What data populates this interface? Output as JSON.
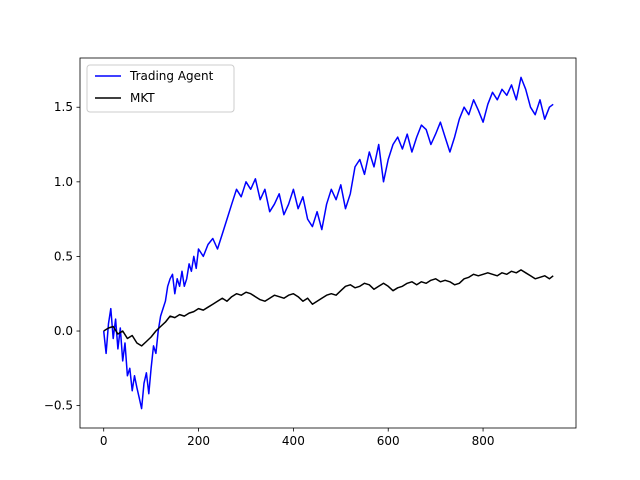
{
  "chart_data": {
    "type": "line",
    "title": "",
    "xlabel": "",
    "ylabel": "",
    "xlim": [
      -50,
      996
    ],
    "ylim": [
      -0.65,
      1.83
    ],
    "xticks": [
      0,
      200,
      400,
      600,
      800
    ],
    "xtick_labels": [
      "0",
      "200",
      "400",
      "600",
      "800"
    ],
    "yticks": [
      -0.5,
      0.0,
      0.5,
      1.0,
      1.5
    ],
    "ytick_labels": [
      "−0.5",
      "0.0",
      "0.5",
      "1.0",
      "1.5"
    ],
    "grid": false,
    "legend_position": "top-left",
    "series": [
      {
        "name": "Trading Agent",
        "color": "#0000ff",
        "x": [
          0,
          5,
          10,
          15,
          20,
          25,
          30,
          35,
          40,
          45,
          50,
          55,
          60,
          65,
          70,
          75,
          80,
          85,
          90,
          95,
          100,
          105,
          110,
          115,
          120,
          125,
          130,
          135,
          140,
          145,
          150,
          155,
          160,
          165,
          170,
          175,
          180,
          185,
          190,
          195,
          200,
          210,
          220,
          230,
          240,
          250,
          260,
          270,
          280,
          290,
          300,
          310,
          320,
          330,
          340,
          350,
          360,
          370,
          380,
          390,
          400,
          410,
          420,
          430,
          440,
          450,
          460,
          470,
          480,
          490,
          500,
          510,
          520,
          530,
          540,
          550,
          560,
          570,
          580,
          590,
          600,
          610,
          620,
          630,
          640,
          650,
          660,
          670,
          680,
          690,
          700,
          710,
          720,
          730,
          740,
          750,
          760,
          770,
          780,
          790,
          800,
          810,
          820,
          830,
          840,
          850,
          860,
          870,
          880,
          890,
          900,
          910,
          920,
          930,
          940,
          948
        ],
        "values": [
          0.0,
          -0.15,
          0.05,
          0.15,
          -0.05,
          0.08,
          -0.12,
          0.02,
          -0.2,
          -0.08,
          -0.3,
          -0.25,
          -0.4,
          -0.3,
          -0.38,
          -0.45,
          -0.52,
          -0.35,
          -0.28,
          -0.42,
          -0.25,
          -0.1,
          -0.15,
          0.0,
          0.1,
          0.15,
          0.2,
          0.3,
          0.35,
          0.38,
          0.25,
          0.35,
          0.3,
          0.4,
          0.3,
          0.35,
          0.45,
          0.4,
          0.5,
          0.42,
          0.55,
          0.5,
          0.58,
          0.62,
          0.55,
          0.65,
          0.75,
          0.85,
          0.95,
          0.9,
          1.0,
          0.95,
          1.02,
          0.88,
          0.95,
          0.8,
          0.85,
          0.92,
          0.78,
          0.85,
          0.95,
          0.82,
          0.9,
          0.75,
          0.7,
          0.8,
          0.68,
          0.85,
          0.95,
          0.88,
          0.98,
          0.82,
          0.92,
          1.1,
          1.15,
          1.05,
          1.2,
          1.1,
          1.25,
          1.0,
          1.15,
          1.25,
          1.3,
          1.22,
          1.32,
          1.2,
          1.3,
          1.38,
          1.35,
          1.25,
          1.32,
          1.4,
          1.3,
          1.2,
          1.3,
          1.42,
          1.5,
          1.45,
          1.55,
          1.48,
          1.4,
          1.52,
          1.6,
          1.55,
          1.62,
          1.58,
          1.65,
          1.55,
          1.7,
          1.62,
          1.5,
          1.45,
          1.55,
          1.42,
          1.5,
          1.52
        ]
      },
      {
        "name": "MKT",
        "color": "#000000",
        "x": [
          0,
          10,
          20,
          30,
          40,
          50,
          60,
          70,
          80,
          90,
          100,
          110,
          120,
          130,
          140,
          150,
          160,
          170,
          180,
          190,
          200,
          210,
          220,
          230,
          240,
          250,
          260,
          270,
          280,
          290,
          300,
          310,
          320,
          330,
          340,
          350,
          360,
          370,
          380,
          390,
          400,
          410,
          420,
          430,
          440,
          450,
          460,
          470,
          480,
          490,
          500,
          510,
          520,
          530,
          540,
          550,
          560,
          570,
          580,
          590,
          600,
          610,
          620,
          630,
          640,
          650,
          660,
          670,
          680,
          690,
          700,
          710,
          720,
          730,
          740,
          750,
          760,
          770,
          780,
          790,
          800,
          810,
          820,
          830,
          840,
          850,
          860,
          870,
          880,
          890,
          900,
          910,
          920,
          930,
          940,
          948
        ],
        "values": [
          0.0,
          0.02,
          0.03,
          -0.02,
          0.0,
          -0.05,
          -0.03,
          -0.08,
          -0.1,
          -0.07,
          -0.04,
          0.0,
          0.03,
          0.06,
          0.1,
          0.09,
          0.11,
          0.1,
          0.12,
          0.13,
          0.15,
          0.14,
          0.16,
          0.18,
          0.2,
          0.22,
          0.2,
          0.23,
          0.25,
          0.24,
          0.26,
          0.25,
          0.23,
          0.21,
          0.2,
          0.22,
          0.24,
          0.23,
          0.22,
          0.24,
          0.25,
          0.23,
          0.2,
          0.22,
          0.18,
          0.2,
          0.22,
          0.24,
          0.25,
          0.24,
          0.27,
          0.3,
          0.31,
          0.29,
          0.3,
          0.32,
          0.31,
          0.28,
          0.3,
          0.32,
          0.3,
          0.27,
          0.29,
          0.3,
          0.32,
          0.33,
          0.31,
          0.33,
          0.32,
          0.34,
          0.35,
          0.33,
          0.34,
          0.33,
          0.31,
          0.32,
          0.35,
          0.36,
          0.38,
          0.37,
          0.38,
          0.39,
          0.38,
          0.37,
          0.39,
          0.38,
          0.4,
          0.39,
          0.41,
          0.39,
          0.37,
          0.35,
          0.36,
          0.37,
          0.35,
          0.37
        ]
      }
    ]
  }
}
